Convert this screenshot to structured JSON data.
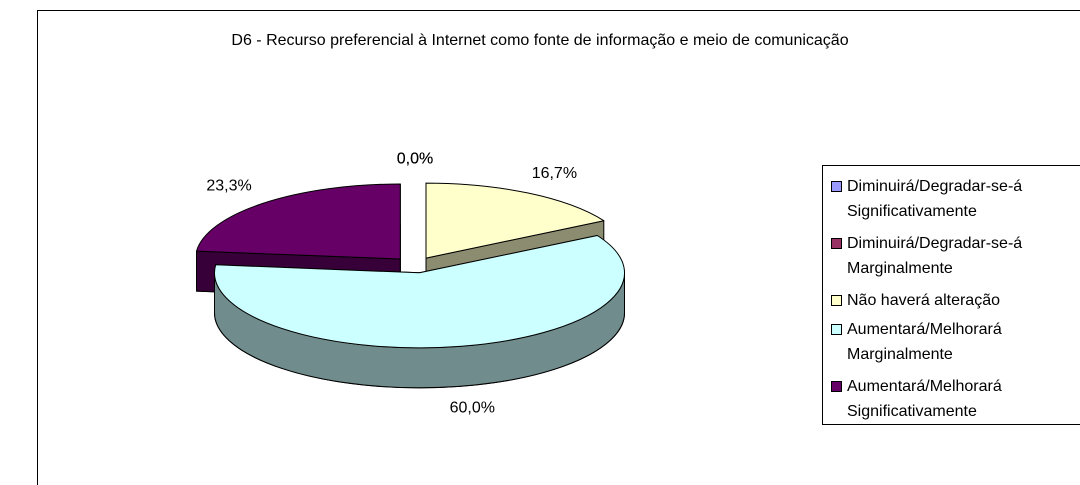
{
  "chart_data": {
    "type": "pie",
    "title": "D6 - Recurso preferencial à Internet como fonte de informação e meio de comunicação",
    "categories": [
      "Diminuirá/Degradar-se-á Significativamente",
      "Diminuirá/Degradar-se-á Marginalmente",
      "Não haverá alteração",
      "Aumentará/Melhorará Marginalmente",
      "Aumentará/Melhorará Significativamente"
    ],
    "values": [
      0,
      0,
      16.7,
      60,
      23.3
    ],
    "value_labels": [
      "0,0%",
      "0,0%",
      "16,7%",
      "60,0%",
      "23,3%"
    ],
    "colors": [
      "#9999FF",
      "#993366",
      "#FFFFCC",
      "#CCFFFF",
      "#660066"
    ],
    "legend": "right"
  }
}
